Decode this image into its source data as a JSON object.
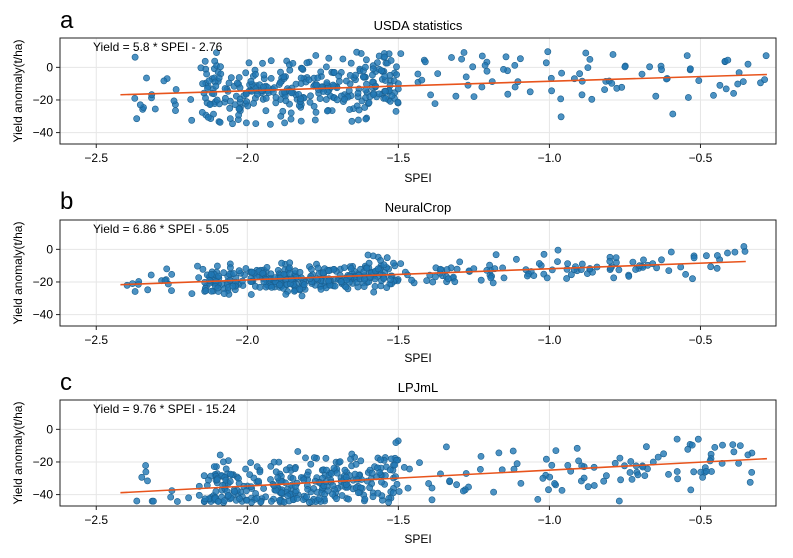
{
  "colors": {
    "points": "#1f77b4",
    "fit_line": "#e8541c"
  },
  "chart_data": [
    {
      "type": "scatter",
      "panel": "a",
      "title": "USDA statistics",
      "xlabel": "SPEI",
      "ylabel": "Yield anomaly(t/ha)",
      "equation": "Yield = 5.8 * SPEI - 2.76",
      "fit": {
        "slope": 5.8,
        "intercept": -2.76
      },
      "xlim": [
        -2.62,
        -0.25
      ],
      "ylim": [
        -47,
        18
      ],
      "xticks": [
        -2.5,
        -2.0,
        -1.5,
        -1.0,
        -0.5
      ],
      "xtick_labels": [
        "−2.5",
        "−2.0",
        "−1.5",
        "−1.0",
        "−0.5"
      ],
      "yticks": [
        0,
        -20,
        -40
      ],
      "ytick_labels": [
        "0",
        "−20",
        "−40"
      ],
      "grid": true,
      "n_points": 420,
      "x_range": [
        -2.42,
        -0.28
      ],
      "resid_sd": 10,
      "y_floor": -35,
      "seed": 11
    },
    {
      "type": "scatter",
      "panel": "b",
      "title": "NeuralCrop",
      "xlabel": "SPEI",
      "ylabel": "Yield anomaly(t/ha)",
      "equation": "Yield = 6.86 * SPEI - 5.05",
      "fit": {
        "slope": 6.86,
        "intercept": -5.05
      },
      "xlim": [
        -2.62,
        -0.25
      ],
      "ylim": [
        -47,
        18
      ],
      "xticks": [
        -2.5,
        -2.0,
        -1.5,
        -1.0,
        -0.5
      ],
      "xtick_labels": [
        "−2.5",
        "−2.0",
        "−1.5",
        "−1.0",
        "−0.5"
      ],
      "yticks": [
        0,
        -20,
        -40
      ],
      "ytick_labels": [
        "0",
        "−20",
        "−40"
      ],
      "grid": true,
      "n_points": 430,
      "x_range": [
        -2.42,
        -0.35
      ],
      "resid_sd": 4.5,
      "y_floor": -30,
      "seed": 23
    },
    {
      "type": "scatter",
      "panel": "c",
      "title": "LPJmL",
      "xlabel": "SPEI",
      "ylabel": "Yield anomaly(t/ha)",
      "equation": "Yield = 9.76 * SPEI - 15.24",
      "fit": {
        "slope": 9.76,
        "intercept": -15.24
      },
      "xlim": [
        -2.62,
        -0.25
      ],
      "ylim": [
        -47,
        18
      ],
      "xticks": [
        -2.5,
        -2.0,
        -1.5,
        -1.0,
        -0.5
      ],
      "xtick_labels": [
        "−2.5",
        "−2.0",
        "−1.5",
        "−1.0",
        "−0.5"
      ],
      "yticks": [
        0,
        -20,
        -40
      ],
      "ytick_labels": [
        "0",
        "−20",
        "−40"
      ],
      "grid": true,
      "n_points": 420,
      "x_range": [
        -2.42,
        -0.28
      ],
      "resid_sd": 9,
      "y_floor": -45,
      "seed": 37
    }
  ]
}
